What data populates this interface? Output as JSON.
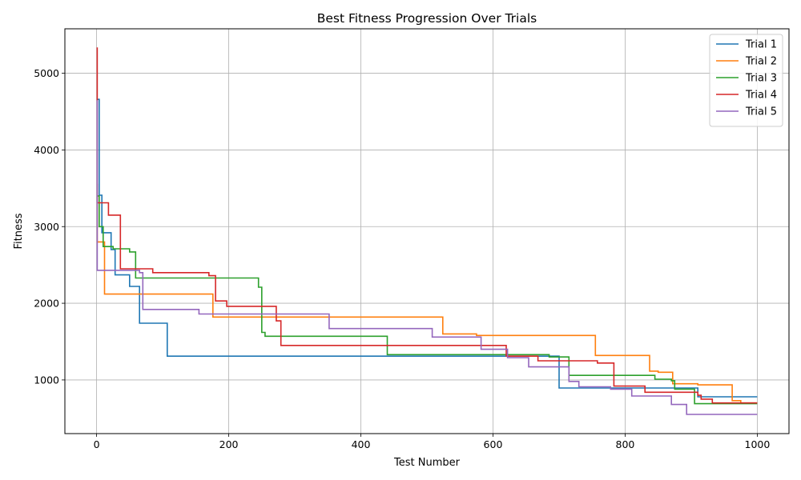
{
  "chart_data": {
    "type": "line",
    "title": "Best Fitness Progression Over Trials",
    "xlabel": "Test Number",
    "ylabel": "Fitness",
    "xlim": [
      -48,
      1048
    ],
    "ylim": [
      300,
      5580
    ],
    "xticks": [
      0,
      200,
      400,
      600,
      800,
      1000
    ],
    "yticks": [
      1000,
      2000,
      3000,
      4000,
      5000
    ],
    "grid": true,
    "legend_position": "top-right",
    "step": true,
    "series": [
      {
        "name": "Trial 1",
        "color": "#1f77b4",
        "x": [
          0,
          4,
          8,
          22,
          28,
          50,
          65,
          107,
          700,
          910,
          1000
        ],
        "y": [
          4660,
          3410,
          2920,
          2700,
          2370,
          2220,
          1740,
          1310,
          895,
          780,
          780
        ]
      },
      {
        "name": "Trial 2",
        "color": "#ff7f0e",
        "x": [
          0,
          1,
          12,
          176,
          524,
          575,
          755,
          837,
          850,
          872,
          910,
          962,
          975,
          1000
        ],
        "y": [
          3550,
          2800,
          2120,
          1820,
          1600,
          1580,
          1320,
          1115,
          1100,
          950,
          935,
          730,
          700,
          700
        ]
      },
      {
        "name": "Trial 3",
        "color": "#2ca02c",
        "x": [
          0,
          4,
          10,
          25,
          50,
          59,
          245,
          250,
          255,
          440,
          685,
          715,
          845,
          870,
          875,
          905,
          1000
        ],
        "y": [
          3400,
          3000,
          2740,
          2710,
          2670,
          2330,
          2210,
          1620,
          1570,
          1330,
          1300,
          1060,
          1010,
          990,
          880,
          690,
          690
        ]
      },
      {
        "name": "Trial 4",
        "color": "#d62728",
        "x": [
          0,
          1,
          18,
          36,
          85,
          170,
          180,
          197,
          272,
          279,
          620,
          668,
          758,
          783,
          830,
          910,
          915,
          932,
          1000
        ],
        "y": [
          5330,
          3310,
          3150,
          2450,
          2400,
          2360,
          2030,
          1960,
          1770,
          1450,
          1310,
          1250,
          1220,
          920,
          840,
          800,
          750,
          700,
          700
        ]
      },
      {
        "name": "Trial 5",
        "color": "#9467bd",
        "x": [
          0,
          1,
          65,
          70,
          155,
          352,
          508,
          582,
          622,
          654,
          715,
          730,
          778,
          810,
          870,
          893,
          1000
        ],
        "y": [
          4640,
          2430,
          2400,
          1920,
          1860,
          1670,
          1560,
          1400,
          1290,
          1170,
          980,
          910,
          880,
          790,
          680,
          550,
          550
        ]
      }
    ]
  }
}
